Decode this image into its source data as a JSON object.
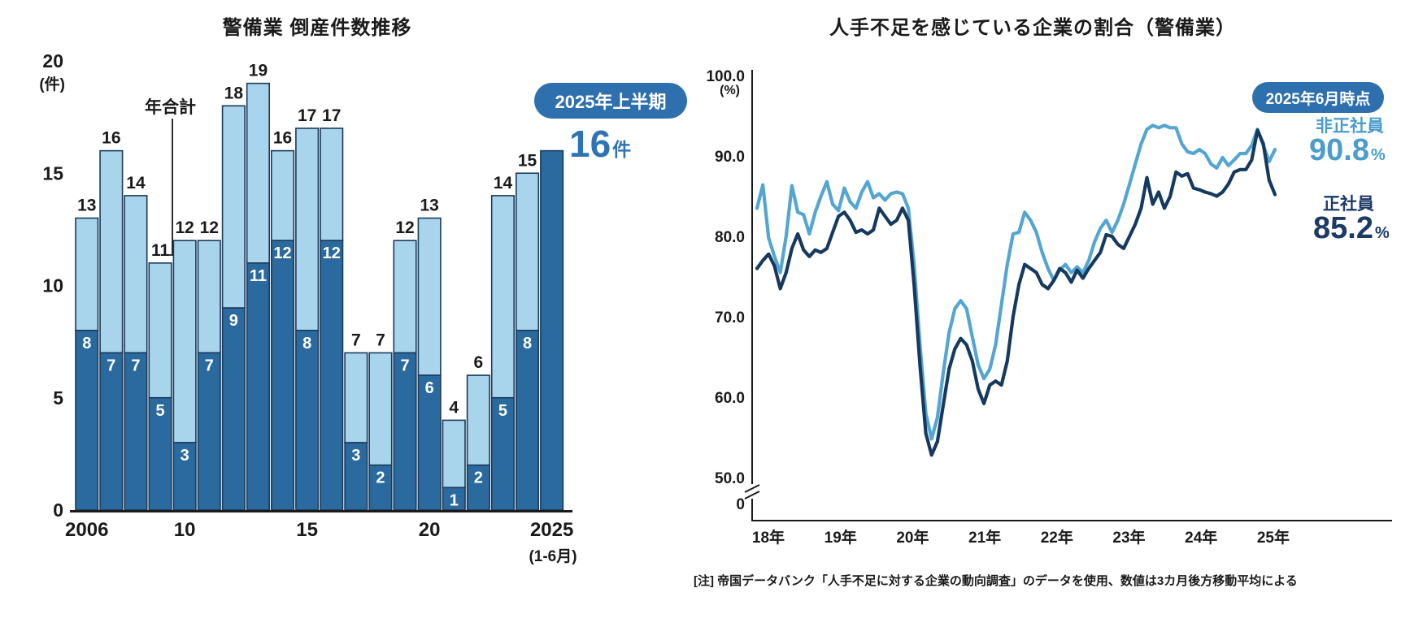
{
  "colors": {
    "accent_blue": "#2e6fad",
    "bar_first_half": "#2b6a9e",
    "bar_second_half": "#a8d4ec",
    "bar_stroke": "#1b3a5a",
    "line_nonregular": "#53a5d2",
    "line_regular": "#16395f",
    "highlight_text": "#2e74b5",
    "text": "#1a1a1a"
  },
  "left_chart": {
    "title": "警備業 倒産件数推移",
    "y_top_label": "20",
    "unit_label": "(件)",
    "annotation_label": "年合計",
    "badge": "2025年上半期",
    "highlight_value": "16",
    "highlight_unit": "件",
    "x_sub_label": "(1-6月)"
  },
  "right_chart": {
    "title": "人手不足を感じている企業の割合（警備業）",
    "unit_label": "(%)",
    "badge": "2025年6月時点",
    "legend": [
      {
        "name": "非正社員",
        "value": "90.8",
        "unit": "%"
      },
      {
        "name": "正社員",
        "value": "85.2",
        "unit": "%"
      }
    ],
    "note": "[注] 帝国データバンク「人手不足に対する企業の動向調査」のデータを使用、数値は3カ月後方移動平均による"
  },
  "chart_data": [
    {
      "type": "bar",
      "stacked": true,
      "title": "警備業 倒産件数推移",
      "ylabel": "件",
      "ylim": [
        0,
        20
      ],
      "yticks": [
        20,
        15,
        10,
        5,
        0
      ],
      "categories": [
        "2006",
        "2007",
        "2008",
        "2009",
        "2010",
        "2011",
        "2012",
        "2013",
        "2014",
        "2015",
        "2016",
        "2017",
        "2018",
        "2019",
        "2020",
        "2021",
        "2022",
        "2023",
        "2024",
        "2025"
      ],
      "series": [
        {
          "name": "上半期(1-6月)",
          "color": "#2b6a9e",
          "values": [
            8,
            7,
            7,
            5,
            3,
            7,
            9,
            11,
            12,
            8,
            12,
            3,
            2,
            7,
            6,
            1,
            2,
            5,
            8,
            16
          ]
        },
        {
          "name": "下半期(7-12月)",
          "color": "#a8d4ec",
          "values": [
            5,
            9,
            7,
            6,
            9,
            5,
            9,
            8,
            4,
            9,
            5,
            4,
            5,
            5,
            7,
            3,
            4,
            9,
            7,
            0
          ]
        }
      ],
      "totals": [
        13,
        16,
        14,
        11,
        12,
        12,
        18,
        19,
        16,
        17,
        17,
        7,
        7,
        12,
        13,
        4,
        6,
        14,
        15,
        16
      ],
      "highlight_index": 19,
      "x_tick_positions": [
        {
          "label": "2006",
          "index": 0
        },
        {
          "label": "10",
          "index": 4
        },
        {
          "label": "15",
          "index": 9
        },
        {
          "label": "20",
          "index": 14
        },
        {
          "label": "2025",
          "index": 19
        }
      ],
      "annotation": "年合計",
      "legend_position": "none"
    },
    {
      "type": "line",
      "title": "人手不足を感じている企業の割合（警備業）",
      "ylabel": "%",
      "ylim_visible": [
        50,
        100
      ],
      "axis_break_to_zero": true,
      "yticks": [
        {
          "v": 100,
          "label": "100.0"
        },
        {
          "v": 90,
          "label": "90.0"
        },
        {
          "v": 80,
          "label": "80.0"
        },
        {
          "v": 70,
          "label": "70.0"
        },
        {
          "v": 60,
          "label": "60.0"
        },
        {
          "v": 50,
          "label": "50.0"
        },
        {
          "v": 0,
          "label": "0"
        }
      ],
      "x_tick_labels": [
        "18年",
        "19年",
        "20年",
        "21年",
        "22年",
        "23年",
        "24年",
        "25年"
      ],
      "x_start": "2018-01",
      "x_end": "2025-06",
      "grid": false,
      "end_labels": [
        {
          "series": "非正社員",
          "value": 90.8
        },
        {
          "series": "正社員",
          "value": 85.2
        }
      ],
      "series": [
        {
          "name": "非正社員",
          "color": "#53a5d2",
          "values": [
            83.5,
            86.4,
            79.8,
            77.5,
            75.5,
            80.0,
            86.3,
            83.0,
            82.7,
            80.3,
            83.0,
            85.0,
            86.8,
            84.0,
            83.2,
            86.0,
            84.3,
            83.5,
            85.5,
            86.8,
            84.8,
            85.3,
            84.5,
            85.3,
            85.5,
            85.3,
            83.5,
            76.5,
            66.5,
            58.0,
            54.8,
            57.5,
            63.0,
            68.0,
            71.0,
            72.0,
            71.0,
            67.5,
            64.0,
            62.3,
            63.5,
            66.5,
            71.5,
            76.5,
            80.3,
            80.5,
            83.0,
            82.0,
            80.5,
            78.0,
            76.0,
            74.5,
            75.8,
            76.5,
            75.5,
            76.2,
            75.5,
            77.0,
            79.3,
            81.0,
            82.0,
            80.5,
            82.0,
            84.0,
            86.5,
            89.0,
            91.5,
            93.3,
            93.8,
            93.5,
            93.8,
            93.5,
            93.5,
            91.5,
            90.5,
            90.3,
            90.8,
            90.3,
            89.0,
            88.5,
            89.8,
            88.8,
            89.5,
            90.3,
            90.3,
            91.3,
            93.3,
            91.3,
            89.3,
            90.8
          ]
        },
        {
          "name": "正社員",
          "color": "#16395f",
          "values": [
            76.0,
            77.0,
            77.8,
            76.3,
            73.5,
            75.5,
            78.5,
            80.3,
            78.3,
            77.5,
            78.3,
            78.0,
            78.5,
            80.5,
            82.5,
            83.0,
            82.0,
            80.5,
            80.8,
            80.3,
            80.8,
            83.5,
            82.5,
            81.5,
            82.0,
            83.5,
            82.0,
            74.0,
            64.0,
            55.5,
            52.8,
            54.5,
            59.0,
            63.5,
            66.0,
            67.3,
            66.5,
            64.5,
            61.0,
            59.2,
            61.5,
            62.0,
            61.5,
            64.5,
            70.0,
            74.0,
            76.5,
            76.0,
            75.5,
            74.0,
            73.5,
            74.5,
            76.0,
            75.5,
            74.3,
            75.8,
            74.8,
            76.0,
            77.0,
            78.0,
            80.2,
            80.0,
            79.0,
            78.5,
            80.0,
            81.5,
            83.5,
            87.3,
            84.0,
            85.5,
            83.5,
            85.0,
            88.0,
            87.5,
            87.8,
            86.0,
            85.8,
            85.5,
            85.3,
            85.0,
            85.5,
            86.5,
            88.0,
            88.3,
            88.3,
            89.5,
            93.2,
            91.5,
            87.0,
            85.2
          ]
        }
      ],
      "note": "[注] 帝国データバンク「人手不足に対する企業の動向調査」のデータを使用、数値は3カ月後方移動平均による"
    }
  ]
}
